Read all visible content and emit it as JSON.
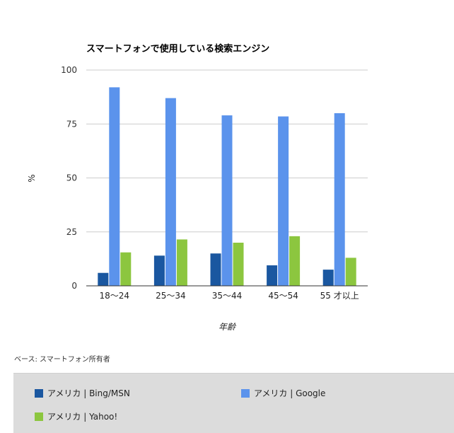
{
  "chart_data": {
    "type": "bar",
    "title": "スマートフォンで使用している検索エンジン",
    "xlabel": "年齢",
    "ylabel": "%",
    "ylim": [
      0,
      100
    ],
    "yticks": [
      0,
      25,
      50,
      75,
      100
    ],
    "categories": [
      "18〜24",
      "25〜34",
      "35〜44",
      "45〜54",
      "55 才以上"
    ],
    "series": [
      {
        "name": "アメリカ | Bing/MSN",
        "color": "#1a57a0",
        "values": [
          6,
          14,
          15,
          9.5,
          7.5
        ]
      },
      {
        "name": "アメリカ | Google",
        "color": "#5b93ec",
        "values": [
          92,
          87,
          79,
          78.5,
          80
        ]
      },
      {
        "name": "アメリカ | Yahoo!",
        "color": "#8cc63f",
        "values": [
          15.5,
          21.5,
          20,
          23,
          13
        ]
      }
    ],
    "grid": true,
    "legend_position": "bottom"
  },
  "note": "ベース: スマートフォン所有者"
}
